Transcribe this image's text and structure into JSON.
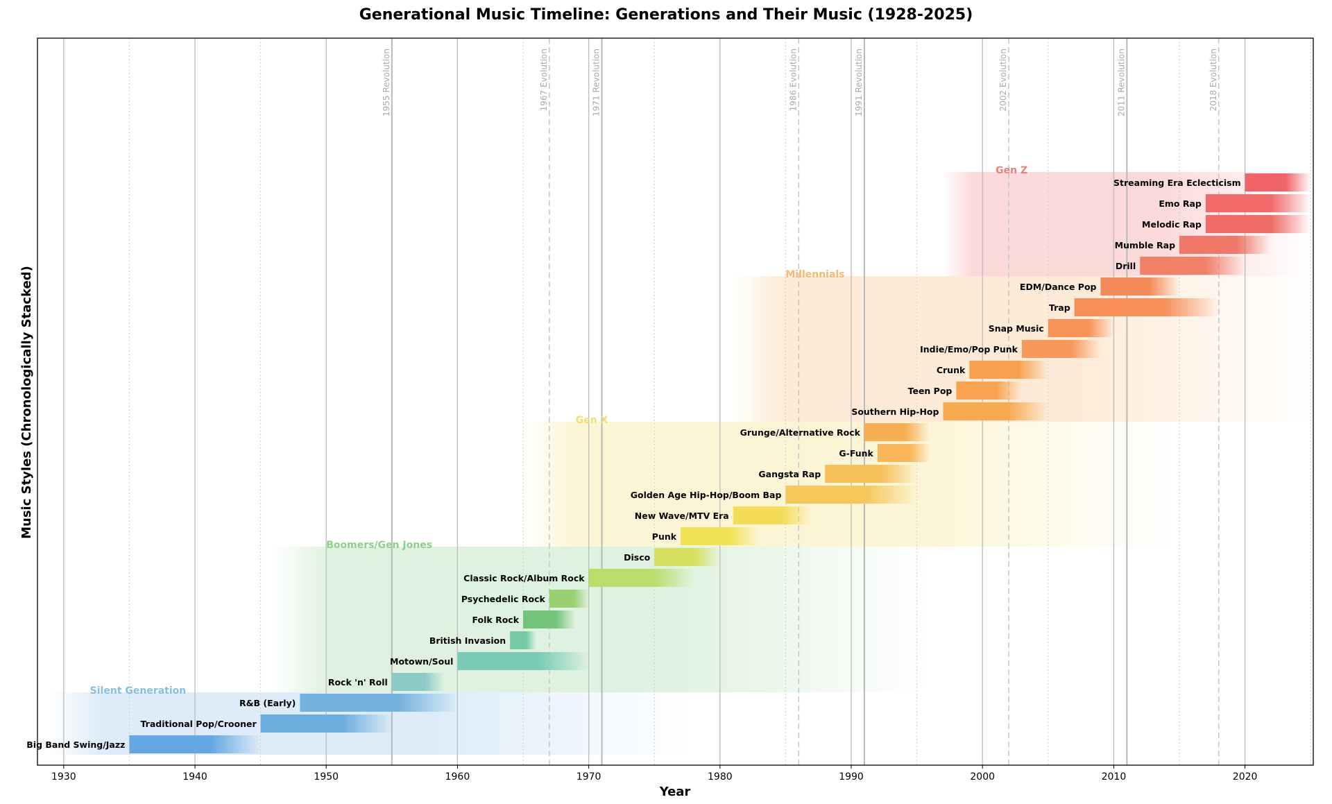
{
  "chart_data": {
    "type": "bar",
    "orientation": "horizontal-timeline",
    "title": "Generational Music Timeline: Generations and Their Music (1928-2025)",
    "xlabel": "Year",
    "ylabel": "Music Styles (Chronologically Stacked)",
    "xlim": [
      1928,
      2025.2
    ],
    "xticks": [
      1930,
      1940,
      1950,
      1960,
      1970,
      1980,
      1990,
      2000,
      2010,
      2020
    ],
    "grid": true,
    "styles": [
      {
        "name": "Big Band Swing/Jazz",
        "start": 1935,
        "end": 1945,
        "color": "#63a8e2"
      },
      {
        "name": "Traditional Pop/Crooner",
        "start": 1945,
        "end": 1955,
        "color": "#6aacdc"
      },
      {
        "name": "R&B (Early)",
        "start": 1948,
        "end": 1960,
        "color": "#72b2dc"
      },
      {
        "name": "Rock 'n' Roll",
        "start": 1955,
        "end": 1959,
        "color": "#8ccac8"
      },
      {
        "name": "Motown/Soul",
        "start": 1960,
        "end": 1970,
        "color": "#7acbb6"
      },
      {
        "name": "British Invasion",
        "start": 1964,
        "end": 1966,
        "color": "#76cca2"
      },
      {
        "name": "Folk Rock",
        "start": 1965,
        "end": 1969,
        "color": "#72c47a"
      },
      {
        "name": "Psychedelic Rock",
        "start": 1967,
        "end": 1970,
        "color": "#98d072"
      },
      {
        "name": "Classic Rock/Album Rock",
        "start": 1970,
        "end": 1978,
        "color": "#bcdc6c"
      },
      {
        "name": "Disco",
        "start": 1975,
        "end": 1980,
        "color": "#d8e060"
      },
      {
        "name": "Punk",
        "start": 1977,
        "end": 1983,
        "color": "#f0e252"
      },
      {
        "name": "New Wave/MTV Era",
        "start": 1981,
        "end": 1987,
        "color": "#f4dc58"
      },
      {
        "name": "Golden Age Hip-Hop/Boom Bap",
        "start": 1985,
        "end": 1995,
        "color": "#f6c85c"
      },
      {
        "name": "Gangsta Rap",
        "start": 1988,
        "end": 1995,
        "color": "#f6c058"
      },
      {
        "name": "G-Funk",
        "start": 1992,
        "end": 1996,
        "color": "#f8b658"
      },
      {
        "name": "Grunge/Alternative Rock",
        "start": 1991,
        "end": 1996,
        "color": "#f8ae52"
      },
      {
        "name": "Southern Hip-Hop",
        "start": 1997,
        "end": 2005,
        "color": "#f8aa50"
      },
      {
        "name": "Teen Pop",
        "start": 1998,
        "end": 2003,
        "color": "#f8a450"
      },
      {
        "name": "Crunk",
        "start": 1999,
        "end": 2005,
        "color": "#f8a04e"
      },
      {
        "name": "Indie/Emo/Pop Punk",
        "start": 2003,
        "end": 2009,
        "color": "#f8985a"
      },
      {
        "name": "Snap Music",
        "start": 2005,
        "end": 2010,
        "color": "#f89458"
      },
      {
        "name": "Trap",
        "start": 2007,
        "end": 2018,
        "color": "#f88e58"
      },
      {
        "name": "EDM/Dance Pop",
        "start": 2009,
        "end": 2015,
        "color": "#f48a5a"
      },
      {
        "name": "Drill",
        "start": 2012,
        "end": 2020,
        "color": "#f08068"
      },
      {
        "name": "Mumble Rap",
        "start": 2015,
        "end": 2022,
        "color": "#f07868"
      },
      {
        "name": "Melodic Rap",
        "start": 2017,
        "end": 2025,
        "color": "#f06c68"
      },
      {
        "name": "Emo Rap",
        "start": 2017,
        "end": 2025,
        "color": "#f06a6a"
      },
      {
        "name": "Streaming Era Eclecticism",
        "start": 2020,
        "end": 2025,
        "color": "#f06468"
      }
    ],
    "generations": [
      {
        "name": "Silent Generation",
        "start": 1928,
        "end": 1945,
        "color": "#85bde6",
        "rows": [
          0,
          2
        ]
      },
      {
        "name": "Boomers/Gen Jones",
        "start": 1946,
        "end": 1964,
        "color": "#8ccf8c",
        "rows": [
          3,
          9
        ]
      },
      {
        "name": "Gen X",
        "start": 1965,
        "end": 1980,
        "color": "#f6dc6a",
        "rows": [
          10,
          15
        ]
      },
      {
        "name": "Millennials",
        "start": 1981,
        "end": 1996,
        "color": "#f8b870",
        "rows": [
          16,
          22
        ]
      },
      {
        "name": "Gen Z",
        "start": 1997,
        "end": 2012,
        "color": "#f47a7a",
        "rows": [
          23,
          27
        ]
      }
    ],
    "markers": [
      {
        "year": 1955,
        "label": "1955 Revolution",
        "kind": "revolution"
      },
      {
        "year": 1967,
        "label": "1967 Evolution",
        "kind": "evolution"
      },
      {
        "year": 1971,
        "label": "1971 Revolution",
        "kind": "revolution"
      },
      {
        "year": 1986,
        "label": "1986 Evolution",
        "kind": "evolution"
      },
      {
        "year": 1991,
        "label": "1991 Revolution",
        "kind": "revolution"
      },
      {
        "year": 2002,
        "label": "2002 Evolution",
        "kind": "evolution"
      },
      {
        "year": 2011,
        "label": "2011 Revolution",
        "kind": "revolution"
      },
      {
        "year": 2018,
        "label": "2018 Evolution",
        "kind": "evolution"
      }
    ]
  }
}
